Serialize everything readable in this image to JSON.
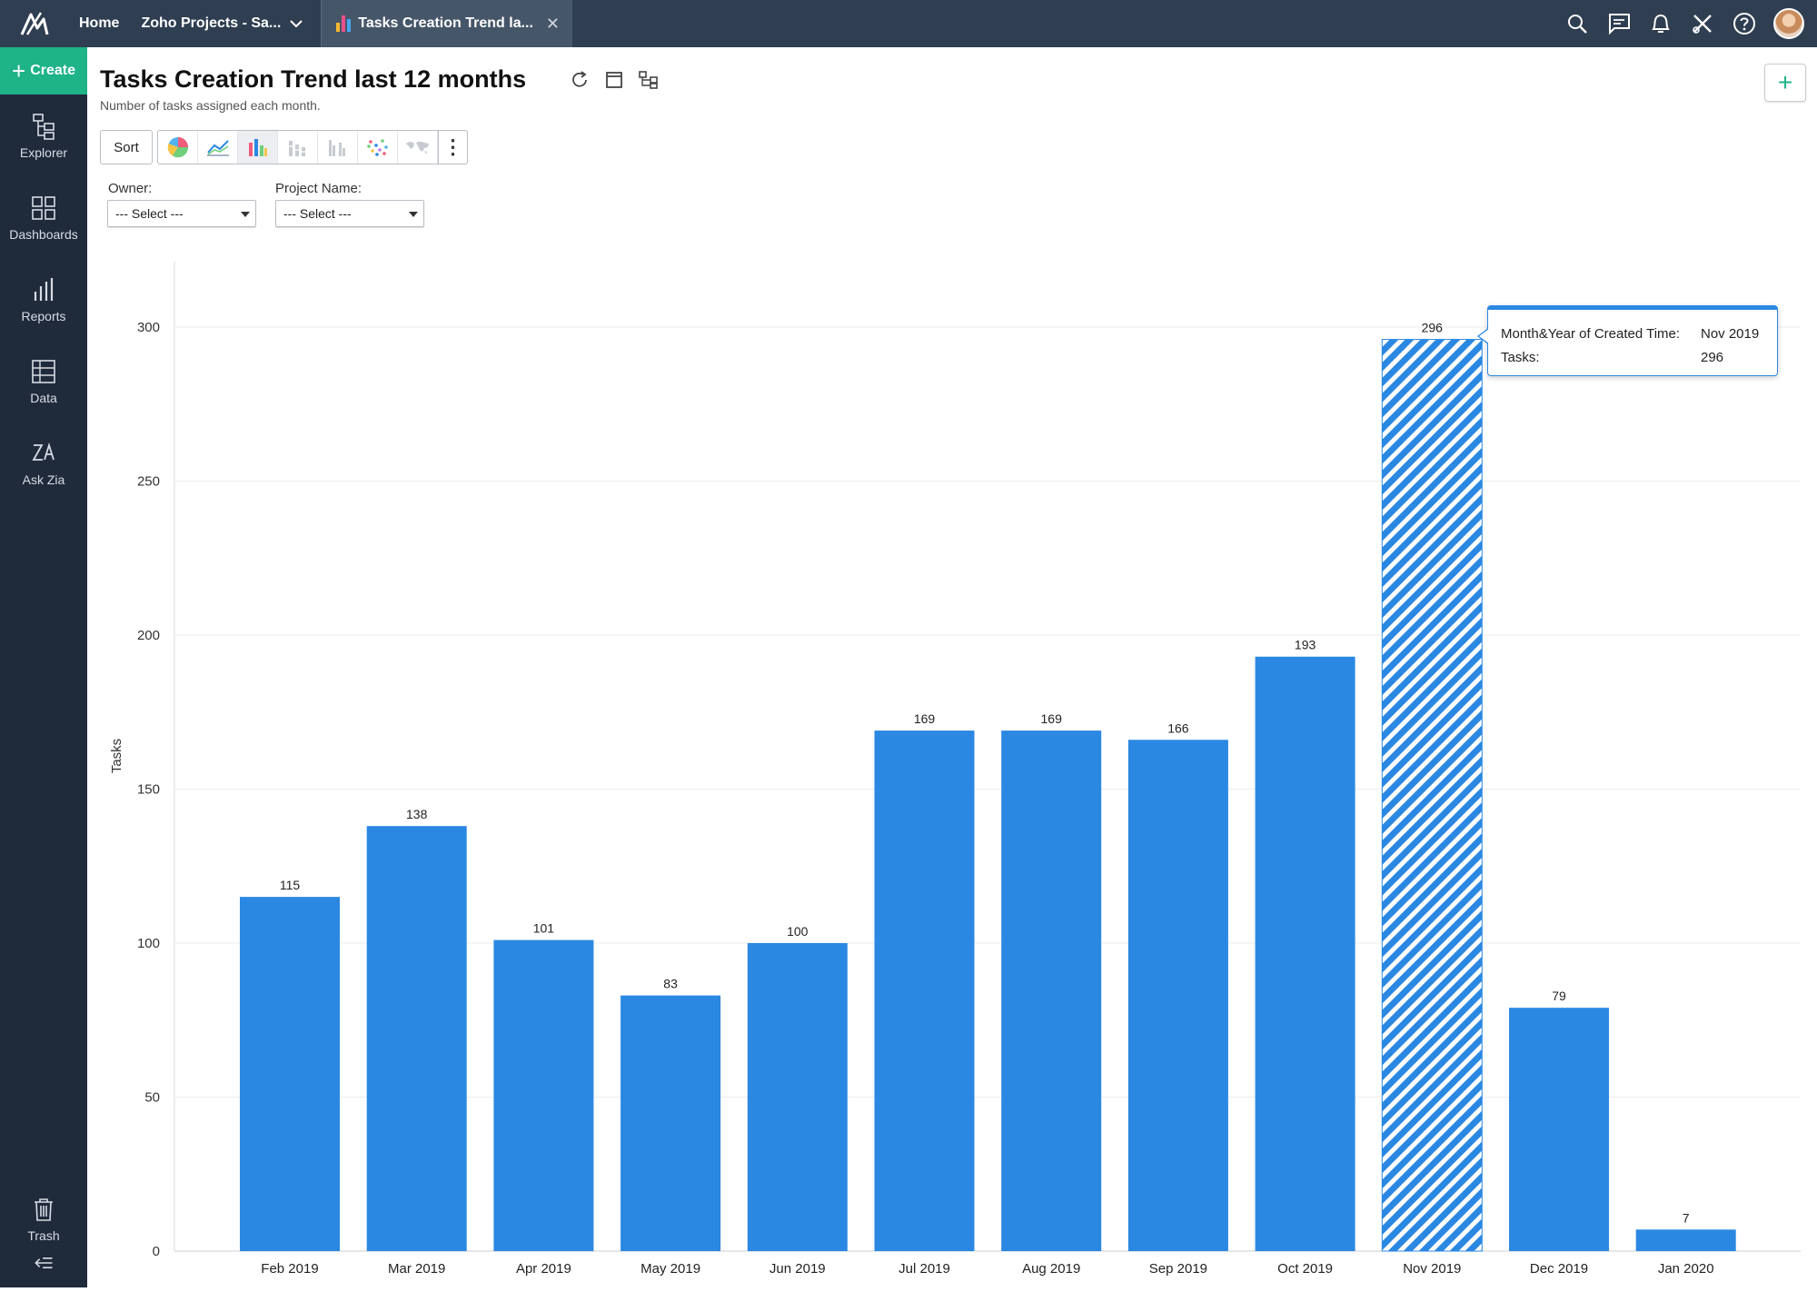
{
  "topbar": {
    "home_label": "Home",
    "workspace_label": "Zoho Projects - Sa...",
    "tab_label": "Tasks Creation Trend la...",
    "icons": [
      "search-icon",
      "chat-icon",
      "bell-icon",
      "tools-icon",
      "help-icon",
      "avatar"
    ]
  },
  "sidebar": {
    "create_label": "Create",
    "items": [
      {
        "label": "Explorer",
        "icon": "explorer-icon"
      },
      {
        "label": "Dashboards",
        "icon": "dashboards-icon"
      },
      {
        "label": "Reports",
        "icon": "reports-icon"
      },
      {
        "label": "Data",
        "icon": "data-icon"
      },
      {
        "label": "Ask Zia",
        "icon": "ask-zia-icon"
      },
      {
        "label": "Trash",
        "icon": "trash-icon"
      }
    ]
  },
  "header": {
    "title": "Tasks Creation Trend last 12 months",
    "subtitle": "Number of tasks assigned each month."
  },
  "toolbar": {
    "sort_label": "Sort",
    "chart_types": [
      "pie",
      "line",
      "bar",
      "stacked-bar",
      "grouped-bar",
      "scatter",
      "map"
    ],
    "active_type": "bar"
  },
  "filters": {
    "owner_label": "Owner:",
    "owner_value": "--- Select ---",
    "project_label": "Project Name:",
    "project_value": "--- Select ---"
  },
  "colors": {
    "bar": "#2b88e2",
    "accent": "#1fb388",
    "topbar": "#2f3e51",
    "sidebar": "#1f2a3b"
  },
  "chart_data": {
    "type": "bar",
    "categories": [
      "Feb 2019",
      "Mar 2019",
      "Apr 2019",
      "May 2019",
      "Jun 2019",
      "Jul 2019",
      "Aug 2019",
      "Sep 2019",
      "Oct 2019",
      "Nov 2019",
      "Dec 2019",
      "Jan 2020"
    ],
    "values": [
      115,
      138,
      101,
      83,
      100,
      169,
      169,
      166,
      193,
      296,
      79,
      7
    ],
    "title": "Tasks Creation Trend last 12 months",
    "xlabel": "",
    "ylabel": "Tasks",
    "ylim": [
      0,
      320
    ],
    "yticks": [
      0,
      50,
      100,
      150,
      200,
      250,
      300
    ],
    "grid": true,
    "highlighted": "Nov 2019"
  },
  "tooltip": {
    "key1": "Month&Year of Created Time:",
    "value1": "Nov 2019",
    "key2": "Tasks:",
    "value2": "296"
  }
}
